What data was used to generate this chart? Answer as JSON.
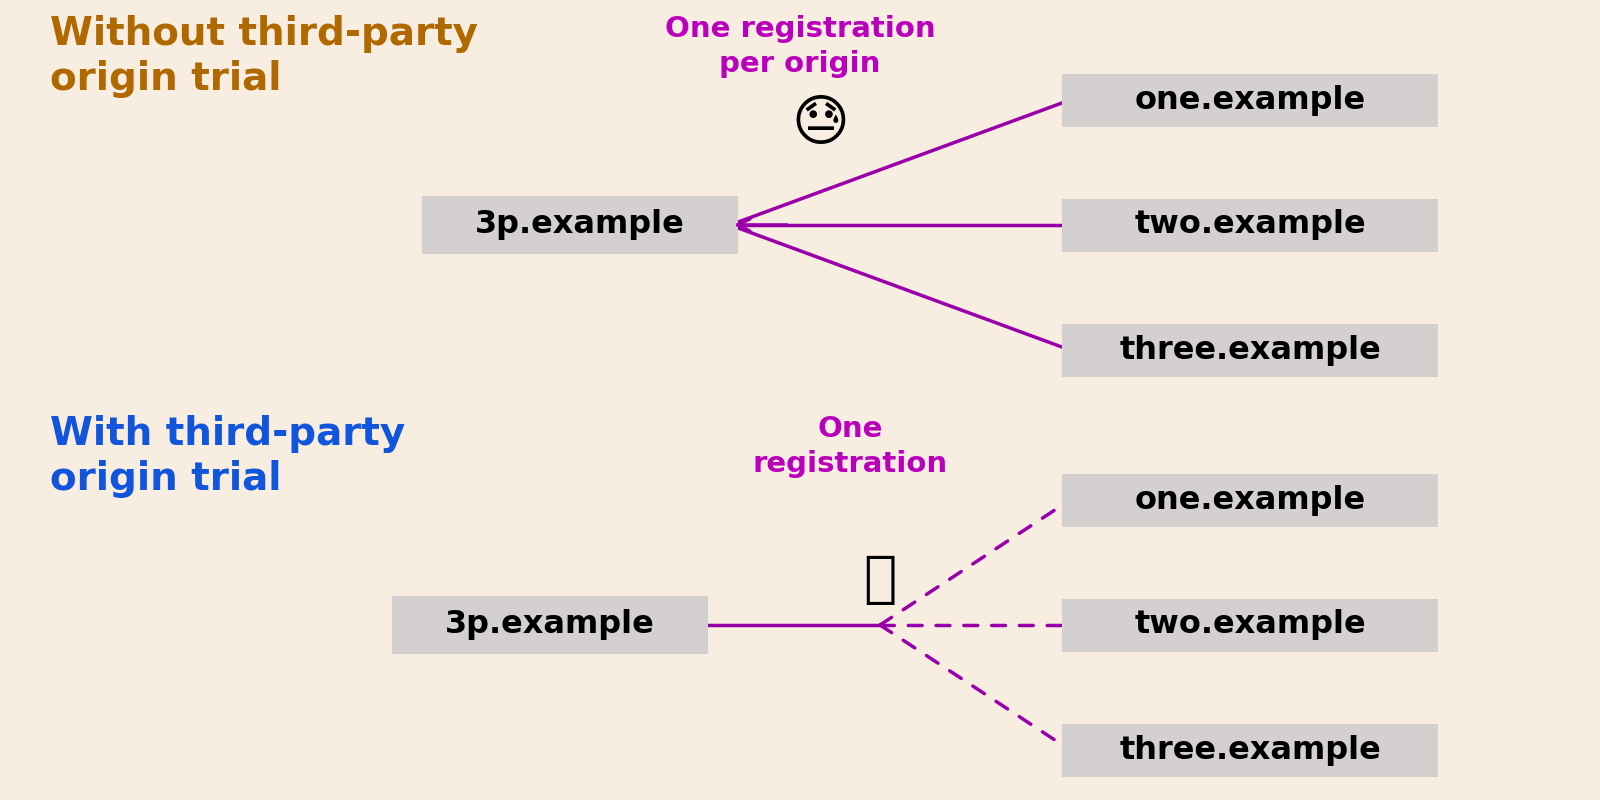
{
  "top_bg": "#f7ede0",
  "bottom_bg": "#dce9f8",
  "top_title": "Without third-party\norigin trial",
  "top_title_color": "#b06800",
  "bottom_title": "With third-party\norigin trial",
  "bottom_title_color": "#1155dd",
  "box_color": "#d4d0d0",
  "source_label": "3p.example",
  "targets": [
    "one.example",
    "two.example",
    "three.example"
  ],
  "top_annotation": "One registration\nper origin",
  "bottom_annotation": "One\nregistration",
  "annotation_color": "#bb00bb",
  "line_color": "#9900aa",
  "title_fontsize": 28,
  "label_fontsize": 23,
  "annotation_fontsize": 21
}
